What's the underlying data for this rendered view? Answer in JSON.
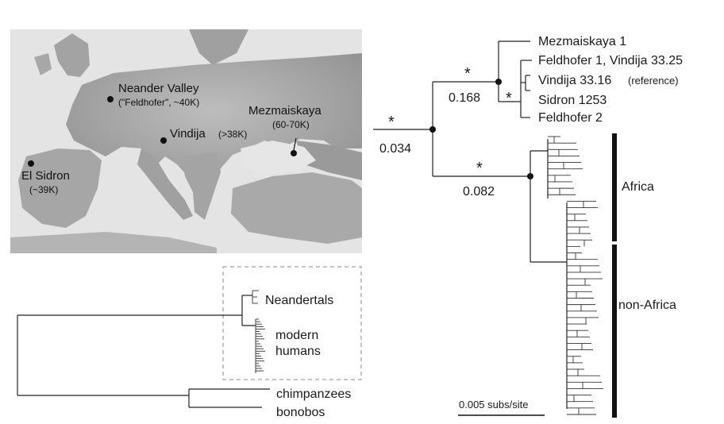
{
  "map": {
    "sites": [
      {
        "name": "Neander Valley",
        "detail": "(\"Feldhofer\", ~40K)"
      },
      {
        "name": "Vindija",
        "detail": "(>38K)"
      },
      {
        "name": "Mezmaiskaya",
        "detail": "(60-70K)"
      },
      {
        "name": "El Sidron",
        "detail": "(~39K)"
      }
    ]
  },
  "tree": {
    "neandertal_taxa": [
      "Mezmaiskaya 1",
      "Feldhofer 1, Vindija 33.25",
      "Vindija 33.16",
      "Sidron 1253",
      "Feldhofer 2"
    ],
    "reference_note": "(reference)",
    "support_marker": "*",
    "branch_lengths": {
      "root": "0.034",
      "neandertal": "0.168",
      "modern": "0.082"
    },
    "groups": {
      "africa": "Africa",
      "non_africa": "non-Africa"
    },
    "scale_bar": "0.005 subs/site"
  },
  "mini_tree": {
    "box_labels": {
      "neandertals": "Neandertals",
      "modern_line1": "modern",
      "modern_line2": "humans"
    },
    "outgroups": [
      "chimpanzees",
      "bonobos"
    ]
  }
}
